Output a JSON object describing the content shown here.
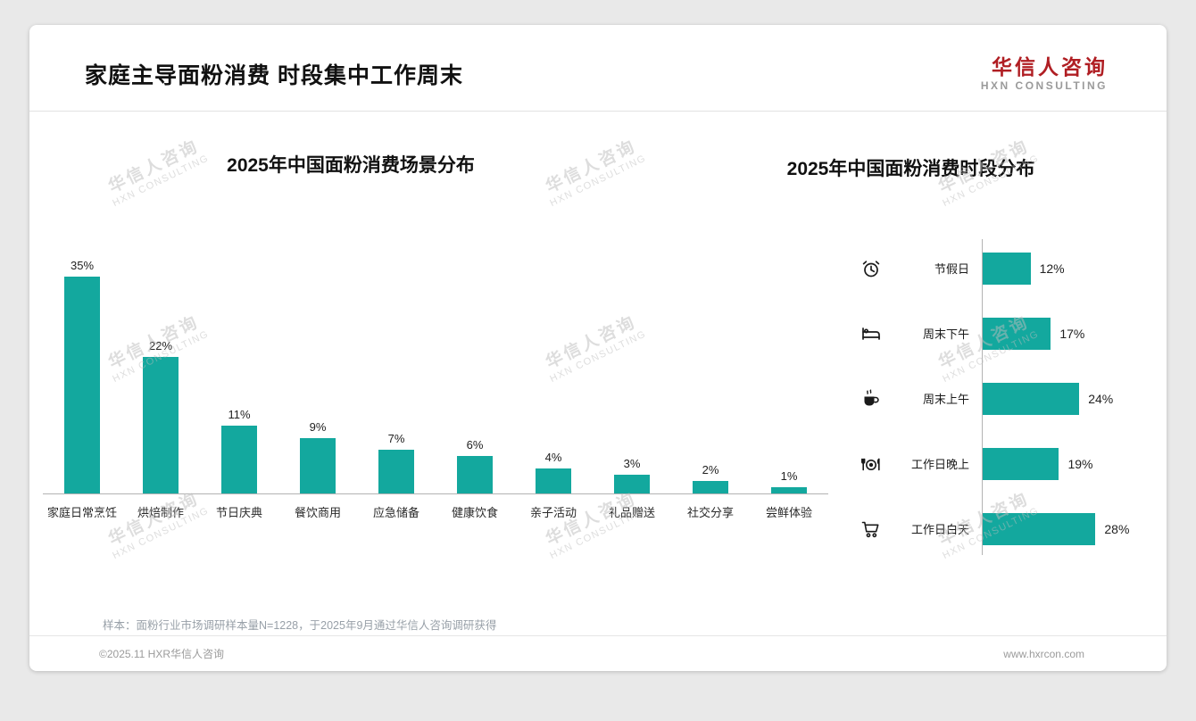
{
  "meta": {
    "title": "家庭主导面粉消费 时段集中工作周末"
  },
  "brand": {
    "name": "华信人咨询",
    "subtitle": "HXN CONSULTING",
    "color": "#b01e23"
  },
  "watermark": {
    "line1": "华信人咨询",
    "line2": "HXN CONSULTING"
  },
  "colors": {
    "accent_teal": "#13a89e",
    "brand_red": "#b01e23",
    "text_dark": "#1a1a1a",
    "muted_gray": "#9b9b9b"
  },
  "chart_data": [
    {
      "type": "bar",
      "orientation": "vertical",
      "title": "2025年中国面粉消费场景分布",
      "categories": [
        "家庭日常烹饪",
        "烘焙制作",
        "节日庆典",
        "餐饮商用",
        "应急储备",
        "健康饮食",
        "亲子活动",
        "礼品赠送",
        "社交分享",
        "尝鲜体验"
      ],
      "values": [
        35,
        22,
        11,
        9,
        7,
        6,
        4,
        3,
        2,
        1
      ],
      "unit": "%",
      "ylim": [
        0,
        40
      ],
      "grid": false,
      "bar_color": "#13a89e"
    },
    {
      "type": "bar",
      "orientation": "horizontal",
      "title": "2025年中国面粉消费时段分布",
      "categories": [
        "节假日",
        "周末下午",
        "周末上午",
        "工作日晚上",
        "工作日白天"
      ],
      "values": [
        12,
        17,
        24,
        19,
        28
      ],
      "icons": [
        "alarm-clock",
        "bed",
        "coffee",
        "cutlery",
        "shopping-cart"
      ],
      "unit": "%",
      "xlim": [
        0,
        30
      ],
      "grid": false,
      "bar_color": "#13a89e"
    }
  ],
  "note": "样本：面粉行业市场调研样本量N=1228，于2025年9月通过华信人咨询调研获得",
  "footer": {
    "left": "©2025.11 HXR华信人咨询",
    "right": "www.hxrcon.com"
  }
}
